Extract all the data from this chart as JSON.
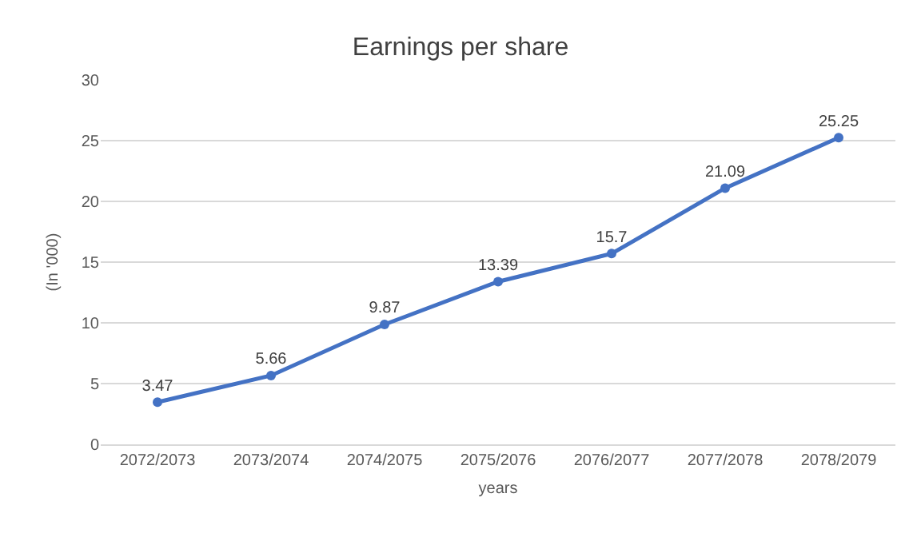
{
  "chart_data": {
    "type": "line",
    "title": "Earnings per share",
    "xlabel": "years",
    "ylabel": "(In '000)",
    "categories": [
      "2072/2073",
      "2073/2074",
      "2074/2075",
      "2075/2076",
      "2076/2077",
      "2077/2078",
      "2078/2079"
    ],
    "series": [
      {
        "color": "#4472c4",
        "values": [
          3.47,
          5.66,
          9.87,
          13.39,
          15.7,
          21.09,
          25.25
        ]
      }
    ],
    "ylim": [
      0,
      30
    ],
    "yticks": [
      0,
      5,
      10,
      15,
      20,
      25,
      30
    ],
    "grid": "y",
    "marker": "circle",
    "line_style": "solid",
    "data_labels": true,
    "legend": false
  }
}
